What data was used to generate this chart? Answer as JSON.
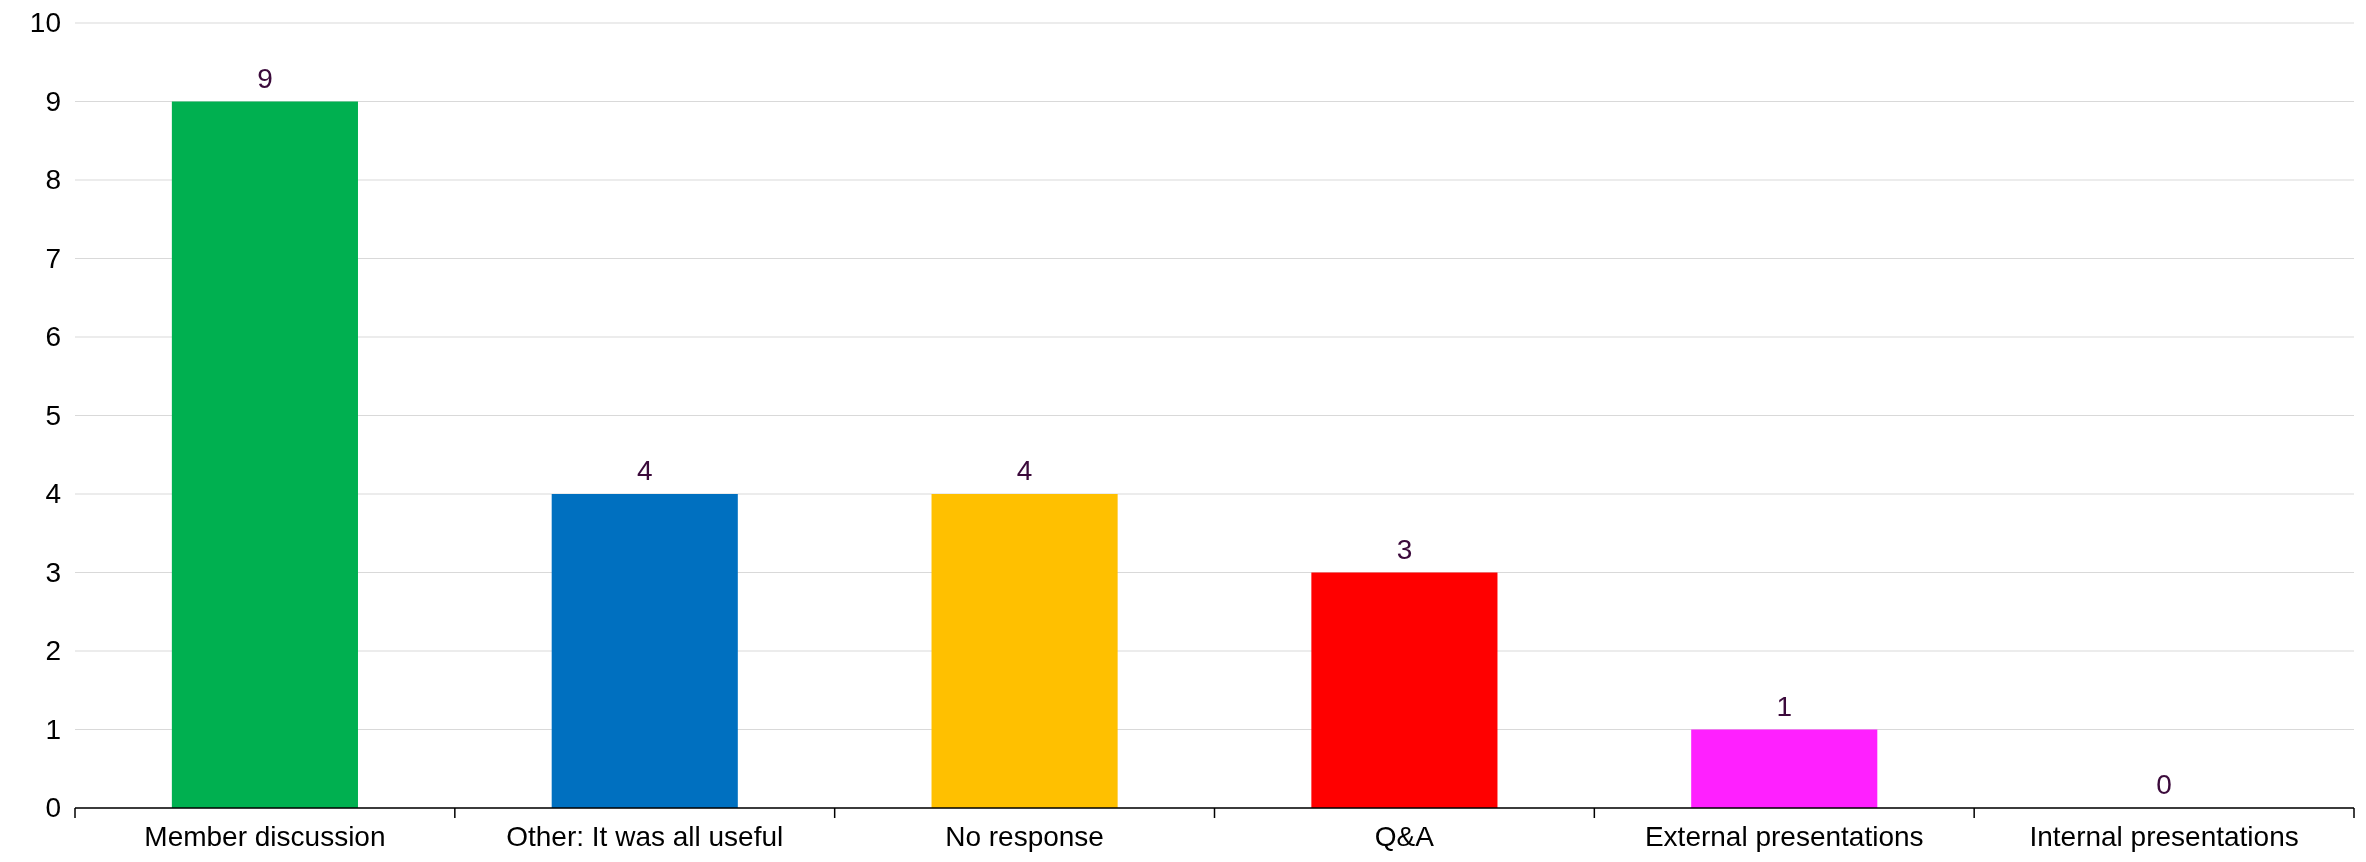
{
  "chart_data": {
    "type": "bar",
    "categories": [
      "Member discussion",
      "Other: It was all useful",
      "No response",
      "Q&A",
      "External presentations",
      "Internal presentations"
    ],
    "values": [
      9,
      4,
      4,
      3,
      1,
      0
    ],
    "colors": [
      "#00b050",
      "#0070c0",
      "#ffc000",
      "#ff0000",
      "#ff20ff",
      "#7030a0"
    ],
    "ylim": [
      0,
      10
    ],
    "yticks": [
      0,
      1,
      2,
      3,
      4,
      5,
      6,
      7,
      8,
      9,
      10
    ],
    "grid": "y",
    "data_labels": true
  }
}
